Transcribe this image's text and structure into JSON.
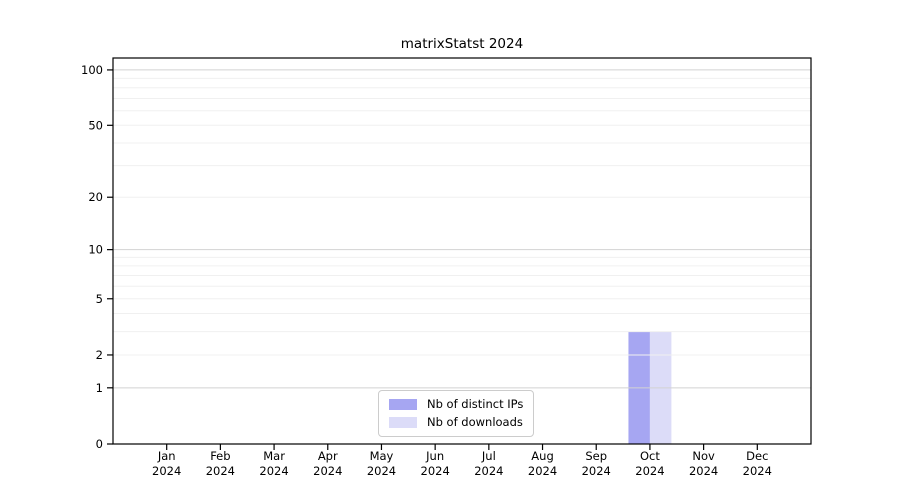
{
  "figure": {
    "background_color": "#ffffff",
    "title": "matrixStatst 2024"
  },
  "chart_data": {
    "type": "bar",
    "title": "matrixStatst 2024",
    "categories": [
      "Jan",
      "Feb",
      "Mar",
      "Apr",
      "May",
      "Jun",
      "Jul",
      "Aug",
      "Sep",
      "Oct",
      "Nov",
      "Dec"
    ],
    "x_year_label": "2024",
    "series": [
      {
        "name": "Nb of distinct IPs",
        "color": "#a6a6f2",
        "values": [
          0,
          0,
          0,
          0,
          0,
          0,
          0,
          0,
          0,
          3,
          0,
          0
        ]
      },
      {
        "name": "Nb of downloads",
        "color": "#dcdcf8",
        "values": [
          0,
          0,
          0,
          0,
          0,
          0,
          0,
          0,
          0,
          3,
          0,
          0
        ]
      }
    ],
    "xlabel": "",
    "ylabel": "",
    "y_axis": {
      "scale": "log1p",
      "tick_values": [
        0,
        1,
        2,
        5,
        10,
        20,
        50,
        100
      ],
      "tick_labels": [
        "0",
        "1",
        "2",
        "5",
        "10",
        "20",
        "50",
        "100"
      ],
      "major_gridlines": [
        1,
        10,
        100
      ],
      "minor_gridlines": [
        2,
        3,
        4,
        5,
        6,
        7,
        8,
        9,
        20,
        30,
        40,
        50,
        60,
        70,
        80,
        90
      ],
      "range": [
        0,
        116
      ]
    },
    "legend": {
      "position": "lower center",
      "entries": [
        "Nb of distinct IPs",
        "Nb of downloads"
      ]
    },
    "grid": true,
    "colors": {
      "spine": "#000000",
      "major_grid": "#d2d2d2",
      "minor_grid": "#f0f0f0",
      "tick_text": "#000000"
    }
  }
}
